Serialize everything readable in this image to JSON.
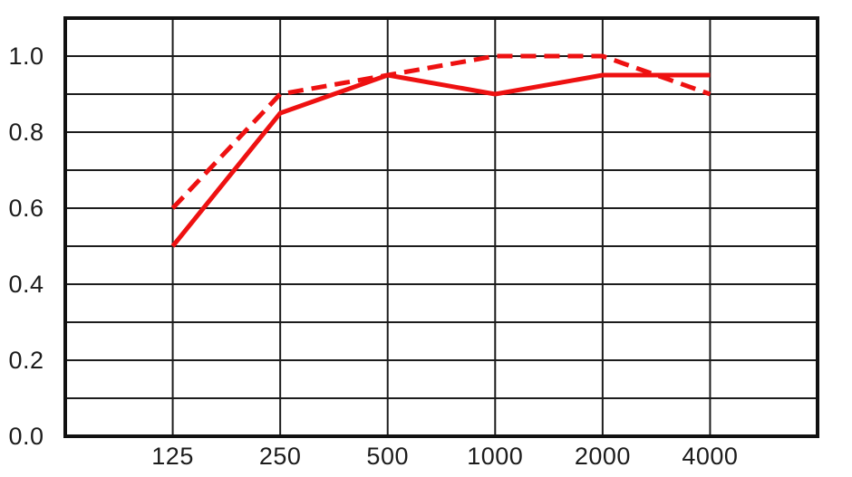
{
  "chart_data": {
    "type": "line",
    "title": "",
    "xlabel": "",
    "ylabel": "",
    "legend": "none",
    "grid": true,
    "x_tick_labels": [
      "125",
      "250",
      "500",
      "1000",
      "2000",
      "4000"
    ],
    "y_tick_labels": [
      "0.0",
      "0.2",
      "0.4",
      "0.6",
      "0.8",
      "1.0"
    ],
    "ylim": [
      0,
      1.1
    ],
    "y_grid_step": 0.1,
    "series": [
      {
        "name": "solid-line",
        "style": "solid",
        "values": [
          0.5,
          0.85,
          0.95,
          0.9,
          0.95,
          0.95
        ]
      },
      {
        "name": "dashed-line",
        "style": "dashed",
        "values": [
          0.6,
          0.9,
          0.95,
          1.0,
          1.0,
          0.9
        ]
      }
    ],
    "colors": {
      "line": "#ee1111",
      "grid": "#1c1c1c",
      "border": "#111111",
      "text": "#1c1c1c",
      "background": "#ffffff"
    }
  }
}
